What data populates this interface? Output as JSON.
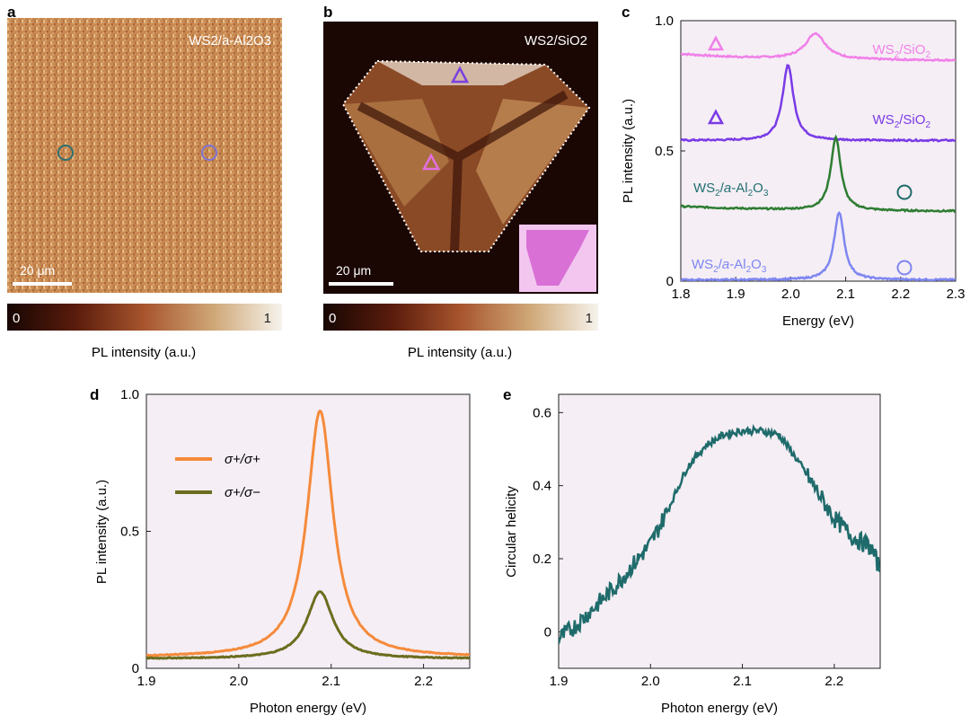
{
  "panel_labels": {
    "a": "a",
    "b": "b",
    "c": "c",
    "d": "d",
    "e": "e"
  },
  "panel_a": {
    "label": "WS2/a-Al2O3",
    "scale_bar": "20 μm",
    "colorbar": {
      "min": "0",
      "max": "1",
      "label": "PL intensity (a.u.)"
    },
    "colors": {
      "circle_left": "#2f6f6f",
      "circle_right": "#7d74d4"
    }
  },
  "panel_b": {
    "label": "WS2/SiO2",
    "scale_bar": "20 μm",
    "colorbar": {
      "min": "0",
      "max": "1",
      "label": "PL intensity (a.u.)"
    },
    "colors": {
      "triangle_top": "#7b3fe0",
      "triangle_left": "#e46fe0"
    }
  },
  "colors": {
    "panel_bg": "#f5eef5",
    "ws2_sio2_pink": "#f080e8",
    "ws2_sio2_purple": "#7a3ae6",
    "ws2_al2o3_green": "#2e7d32",
    "ws2_al2o3_blue": "#7e86f0",
    "sigma_pp": "#f58a3a",
    "sigma_pm": "#6b6d1e",
    "helicity": "#1f6b6b",
    "green_label": "#217070",
    "blue_label": "#7e86f0"
  },
  "chart_data": [
    {
      "id": "c",
      "type": "line",
      "title": "",
      "xlabel": "Energy (eV)",
      "ylabel": "PL intensity (a.u.)",
      "xlim": [
        1.8,
        2.3
      ],
      "ylim": [
        0,
        1.0
      ],
      "x_ticks": [
        "1.8",
        "1.9",
        "2.0",
        "2.1",
        "2.2",
        "2.3"
      ],
      "y_ticks": [
        "0",
        "0.5",
        "1.0"
      ],
      "series": [
        {
          "name": "WS2/SiO2 (top triangle)",
          "offset": 0.85,
          "peak_eV": 2.045,
          "amplitude": 0.1,
          "width_eV": 0.022,
          "marker": "triangle"
        },
        {
          "name": "WS2/SiO2 (left triangle)",
          "offset": 0.54,
          "peak_eV": 1.995,
          "amplitude": 0.29,
          "width_eV": 0.012,
          "marker": "triangle"
        },
        {
          "name": "WS2/a-Al2O3 (green circle)",
          "offset": 0.275,
          "peak_eV": 2.082,
          "amplitude": 0.28,
          "width_eV": 0.011,
          "marker": "circle"
        },
        {
          "name": "WS2/a-Al2O3 (blue circle)",
          "offset": 0.005,
          "peak_eV": 2.088,
          "amplitude": 0.26,
          "width_eV": 0.011,
          "marker": "circle"
        }
      ]
    },
    {
      "id": "d",
      "type": "line",
      "title": "",
      "xlabel": "Photon energy (eV)",
      "ylabel": "PL intensity (a.u.)",
      "xlim": [
        1.9,
        2.25
      ],
      "ylim": [
        0,
        1.0
      ],
      "x_ticks": [
        "1.9",
        "2.0",
        "2.1",
        "2.2"
      ],
      "y_ticks": [
        "0",
        "0.5",
        "1.0"
      ],
      "legend": "upper-left",
      "series": [
        {
          "name": "σ+/σ+",
          "baseline": 0.04,
          "peak_eV": 2.088,
          "peak_value": 0.94,
          "width_eV": 0.017
        },
        {
          "name": "σ+/σ−",
          "baseline": 0.035,
          "peak_eV": 2.088,
          "peak_value": 0.28,
          "width_eV": 0.017
        }
      ]
    },
    {
      "id": "e",
      "type": "line",
      "title": "",
      "xlabel": "Photon energy (eV)",
      "ylabel": "Circular helicity",
      "xlim": [
        1.9,
        2.25
      ],
      "ylim": [
        -0.1,
        0.65
      ],
      "x_ticks": [
        "1.9",
        "2.0",
        "2.1",
        "2.2"
      ],
      "y_ticks": [
        "0",
        "0.2",
        "0.4",
        "0.6"
      ],
      "series": [
        {
          "name": "helicity",
          "x": [
            1.9,
            1.92,
            1.94,
            1.96,
            1.98,
            2.0,
            2.02,
            2.04,
            2.06,
            2.08,
            2.1,
            2.12,
            2.14,
            2.16,
            2.18,
            2.2,
            2.22,
            2.24,
            2.25
          ],
          "y": [
            -0.02,
            0.02,
            0.07,
            0.12,
            0.18,
            0.24,
            0.34,
            0.45,
            0.51,
            0.54,
            0.55,
            0.55,
            0.54,
            0.47,
            0.39,
            0.31,
            0.26,
            0.23,
            0.17
          ]
        }
      ]
    }
  ]
}
